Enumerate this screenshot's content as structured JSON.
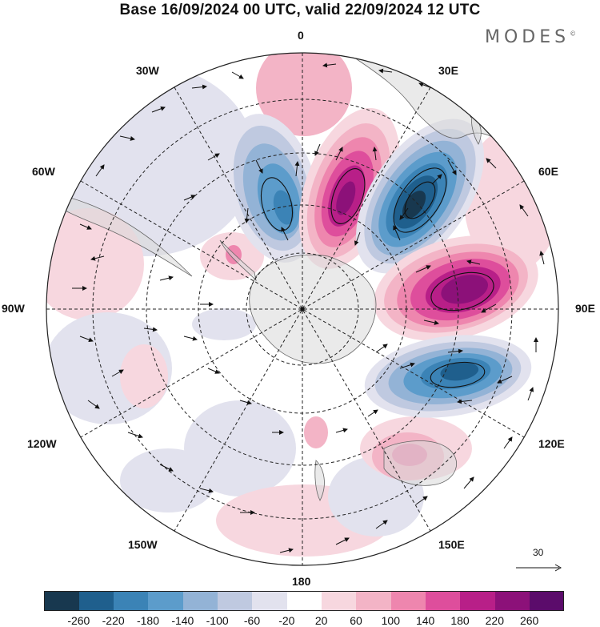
{
  "title": "Base 16/09/2024 00 UTC, valid 22/09/2024 12 UTC",
  "logo": "MODES",
  "logo_mark": "©",
  "longitude_labels": {
    "lon_0": "0",
    "lon_30e": "30E",
    "lon_60e": "60E",
    "lon_90e": "90E",
    "lon_120e": "120E",
    "lon_150e": "150E",
    "lon_180": "180",
    "lon_150w": "150W",
    "lon_120w": "120W",
    "lon_90w": "90W",
    "lon_60w": "60W",
    "lon_30w": "30W"
  },
  "reference_vector": {
    "label": "30"
  },
  "colorbar": {
    "ticks": [
      "-260",
      "-220",
      "-180",
      "-140",
      "-100",
      "-60",
      "-20",
      "20",
      "60",
      "100",
      "140",
      "180",
      "220",
      "260"
    ],
    "colors": [
      "#18384f",
      "#1f5f8d",
      "#3b83b6",
      "#5c9ccb",
      "#93b3d6",
      "#bfc9e0",
      "#e2e2ee",
      "#ffffff",
      "#f7d7df",
      "#f3b4c6",
      "#ee86ae",
      "#de4e9c",
      "#b81f88",
      "#8c1179",
      "#5b0c6b"
    ]
  },
  "map": {
    "projection": "south-polar-stereographic",
    "anomalies": [
      {
        "name": "blue-30e",
        "color": "#1f5f8d"
      },
      {
        "name": "magenta-90e",
        "color": "#8c1179"
      },
      {
        "name": "blue-110e",
        "color": "#1f5f8d"
      },
      {
        "name": "magenta-15e",
        "color": "#8c1179"
      },
      {
        "name": "blue-20w",
        "color": "#5c9ccb"
      }
    ]
  }
}
